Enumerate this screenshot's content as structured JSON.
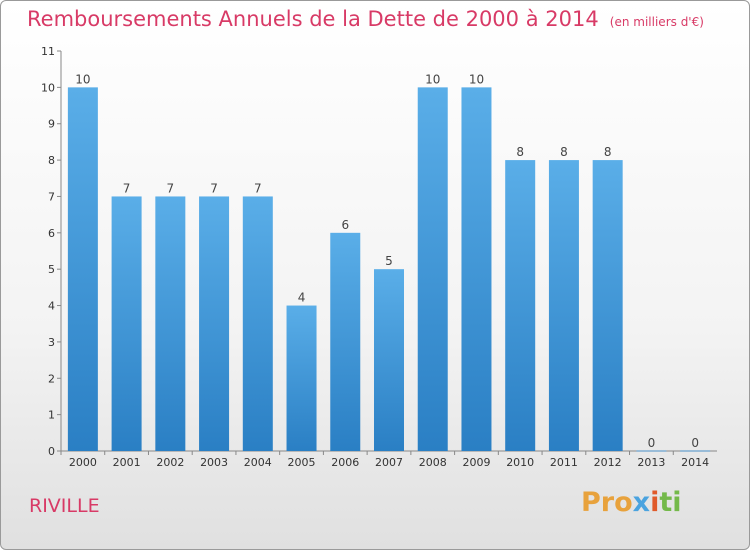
{
  "title": "Remboursements Annuels de la Dette de 2000 à 2014",
  "unit_note": "(en milliers d'€)",
  "commune": "RIVILLE",
  "logo": {
    "p1": "Pro",
    "p2": "x",
    "p3": "i",
    "p4": "ti"
  },
  "colors": {
    "title": "#d83a66",
    "bar_top": "#5aaee8",
    "bar_bottom": "#2a7fc4"
  },
  "chart_data": {
    "type": "bar",
    "categories": [
      "2000",
      "2001",
      "2002",
      "2003",
      "2004",
      "2005",
      "2006",
      "2007",
      "2008",
      "2009",
      "2010",
      "2011",
      "2012",
      "2013",
      "2014"
    ],
    "values": [
      10,
      7,
      7,
      7,
      7,
      4,
      6,
      5,
      10,
      10,
      8,
      8,
      8,
      0,
      0
    ],
    "data_labels": [
      "10",
      "7",
      "7",
      "7",
      "7",
      "4",
      "6",
      "5",
      "10",
      "10",
      "8",
      "8",
      "8",
      "0",
      "0"
    ],
    "y_ticks": [
      "0",
      "1",
      "2",
      "3",
      "4",
      "5",
      "6",
      "7",
      "8",
      "9",
      "10",
      "11"
    ],
    "ylim": [
      0,
      11
    ],
    "grid": false,
    "legend": "none"
  }
}
